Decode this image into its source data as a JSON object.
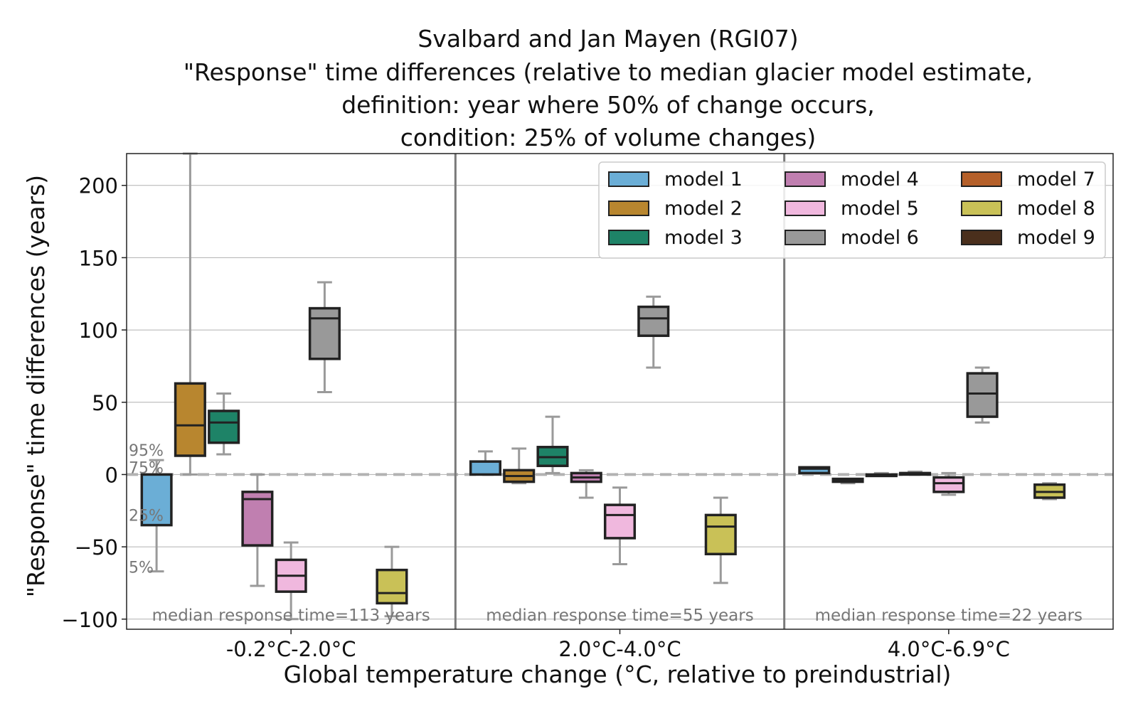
{
  "chart_data": {
    "type": "boxplot",
    "title_lines": [
      "Svalbard and Jan Mayen (RGI07)",
      "\"Response\" time differences (relative to median glacier model estimate,",
      "definition: year where 50% of change occurs,",
      "condition: 25% of volume changes)"
    ],
    "xlabel": "Global temperature change (°C, relative to preindustrial)",
    "ylabel": "\"Response\" time differences (years)",
    "ylim": [
      -107,
      222
    ],
    "yticks": [
      -100,
      -50,
      0,
      50,
      100,
      150,
      200
    ],
    "ytick_labels": [
      "−100",
      "−50",
      "0",
      "50",
      "100",
      "150",
      "200"
    ],
    "grid": "horizontal",
    "zero_line": "dashed",
    "legend": {
      "placement": "top-right",
      "columns": 3
    },
    "quantile_labels": [
      "95%",
      "75%",
      "25%",
      "5%"
    ],
    "groups": [
      {
        "label": "-0.2°C-2.0°C",
        "note": "median response time=113 years"
      },
      {
        "label": "2.0°C-4.0°C",
        "note": "median response time=55 years"
      },
      {
        "label": "4.0°C-6.9°C",
        "note": "median response time=22 years"
      }
    ],
    "series": [
      {
        "name": "model 1",
        "color": "#6baed6",
        "boxes": [
          {
            "p5": -67,
            "q1": -35,
            "median": 0,
            "q3": 0,
            "p95": 10
          },
          {
            "p5": 0,
            "q1": 0,
            "median": 0,
            "q3": 9,
            "p95": 16
          },
          {
            "p5": 1,
            "q1": 1,
            "median": 4,
            "q3": 5,
            "p95": 5
          }
        ]
      },
      {
        "name": "model 2",
        "color": "#b8862f",
        "boxes": [
          {
            "p5": 0,
            "q1": 13,
            "median": 34,
            "q3": 63,
            "p95": 222
          },
          {
            "p5": -6,
            "q1": -5,
            "median": -1,
            "q3": 3,
            "p95": 18
          },
          {
            "p5": -6,
            "q1": -5,
            "median": -4,
            "q3": -3,
            "p95": -3
          }
        ]
      },
      {
        "name": "model 3",
        "color": "#1e8367",
        "boxes": [
          {
            "p5": 14,
            "q1": 22,
            "median": 36,
            "q3": 44,
            "p95": 56
          },
          {
            "p5": 1,
            "q1": 6,
            "median": 12,
            "q3": 19,
            "p95": 40
          },
          {
            "p5": 0,
            "q1": 0,
            "median": 0,
            "q3": 0,
            "p95": 1
          }
        ]
      },
      {
        "name": "model 4",
        "color": "#c07fb0",
        "boxes": [
          {
            "p5": -77,
            "q1": -49,
            "median": -17,
            "q3": -12,
            "p95": 0
          },
          {
            "p5": -16,
            "q1": -5,
            "median": -2,
            "q3": 1,
            "p95": 3
          },
          {
            "p5": 0,
            "q1": 0,
            "median": 1,
            "q3": 1,
            "p95": 2
          }
        ]
      },
      {
        "name": "model 5",
        "color": "#f0b8de",
        "boxes": [
          {
            "p5": -100,
            "q1": -81,
            "median": -70,
            "q3": -59,
            "p95": -47
          },
          {
            "p5": -62,
            "q1": -44,
            "median": -28,
            "q3": -21,
            "p95": -9
          },
          {
            "p5": -14,
            "q1": -12,
            "median": -6,
            "q3": -2,
            "p95": 1
          }
        ]
      },
      {
        "name": "model 6",
        "color": "#999999",
        "boxes": [
          {
            "p5": 57,
            "q1": 80,
            "median": 108,
            "q3": 115,
            "p95": 133
          },
          {
            "p5": 74,
            "q1": 96,
            "median": 108,
            "q3": 116,
            "p95": 123
          },
          {
            "p5": 36,
            "q1": 40,
            "median": 56,
            "q3": 70,
            "p95": 74
          }
        ]
      },
      {
        "name": "model 7",
        "color": "#b5602a",
        "boxes": []
      },
      {
        "name": "model 8",
        "color": "#c9c157",
        "boxes": [
          {
            "p5": -98,
            "q1": -89,
            "median": -82,
            "q3": -66,
            "p95": -50
          },
          {
            "p5": -75,
            "q1": -55,
            "median": -36,
            "q3": -28,
            "p95": -16
          },
          {
            "p5": -17,
            "q1": -16,
            "median": -12,
            "q3": -7,
            "p95": -6
          }
        ]
      },
      {
        "name": "model 9",
        "color": "#4a2f1c",
        "boxes": []
      }
    ]
  }
}
